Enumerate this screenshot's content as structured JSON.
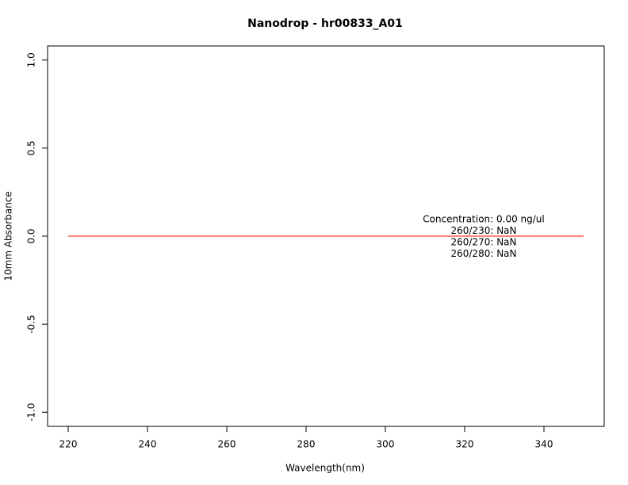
{
  "chart_data": {
    "type": "line",
    "title": "Nanodrop - hr00833_A01",
    "x_label": "Wavelength(nm)",
    "y_label": "10mm Absorbance",
    "x": [
      220,
      350
    ],
    "series": [
      {
        "name": null,
        "color": "#ff0000",
        "values": [
          0,
          0
        ]
      }
    ],
    "xlim": [
      214.8,
      355.2
    ],
    "ylim": [
      -1.08,
      1.08
    ],
    "xticks": [
      220,
      240,
      260,
      280,
      300,
      320,
      340
    ],
    "yticks": [
      {
        "value": -1,
        "label": "-1.0"
      },
      -0.5,
      {
        "value": 0,
        "label": "0.0"
      },
      0.5,
      {
        "value": 1,
        "label": "1.0"
      }
    ],
    "annotations": [
      "Concentration: 0.00 ng/ul",
      "260/230: NaN",
      "260/270: NaN",
      "260/280: NaN"
    ],
    "grid": false
  }
}
